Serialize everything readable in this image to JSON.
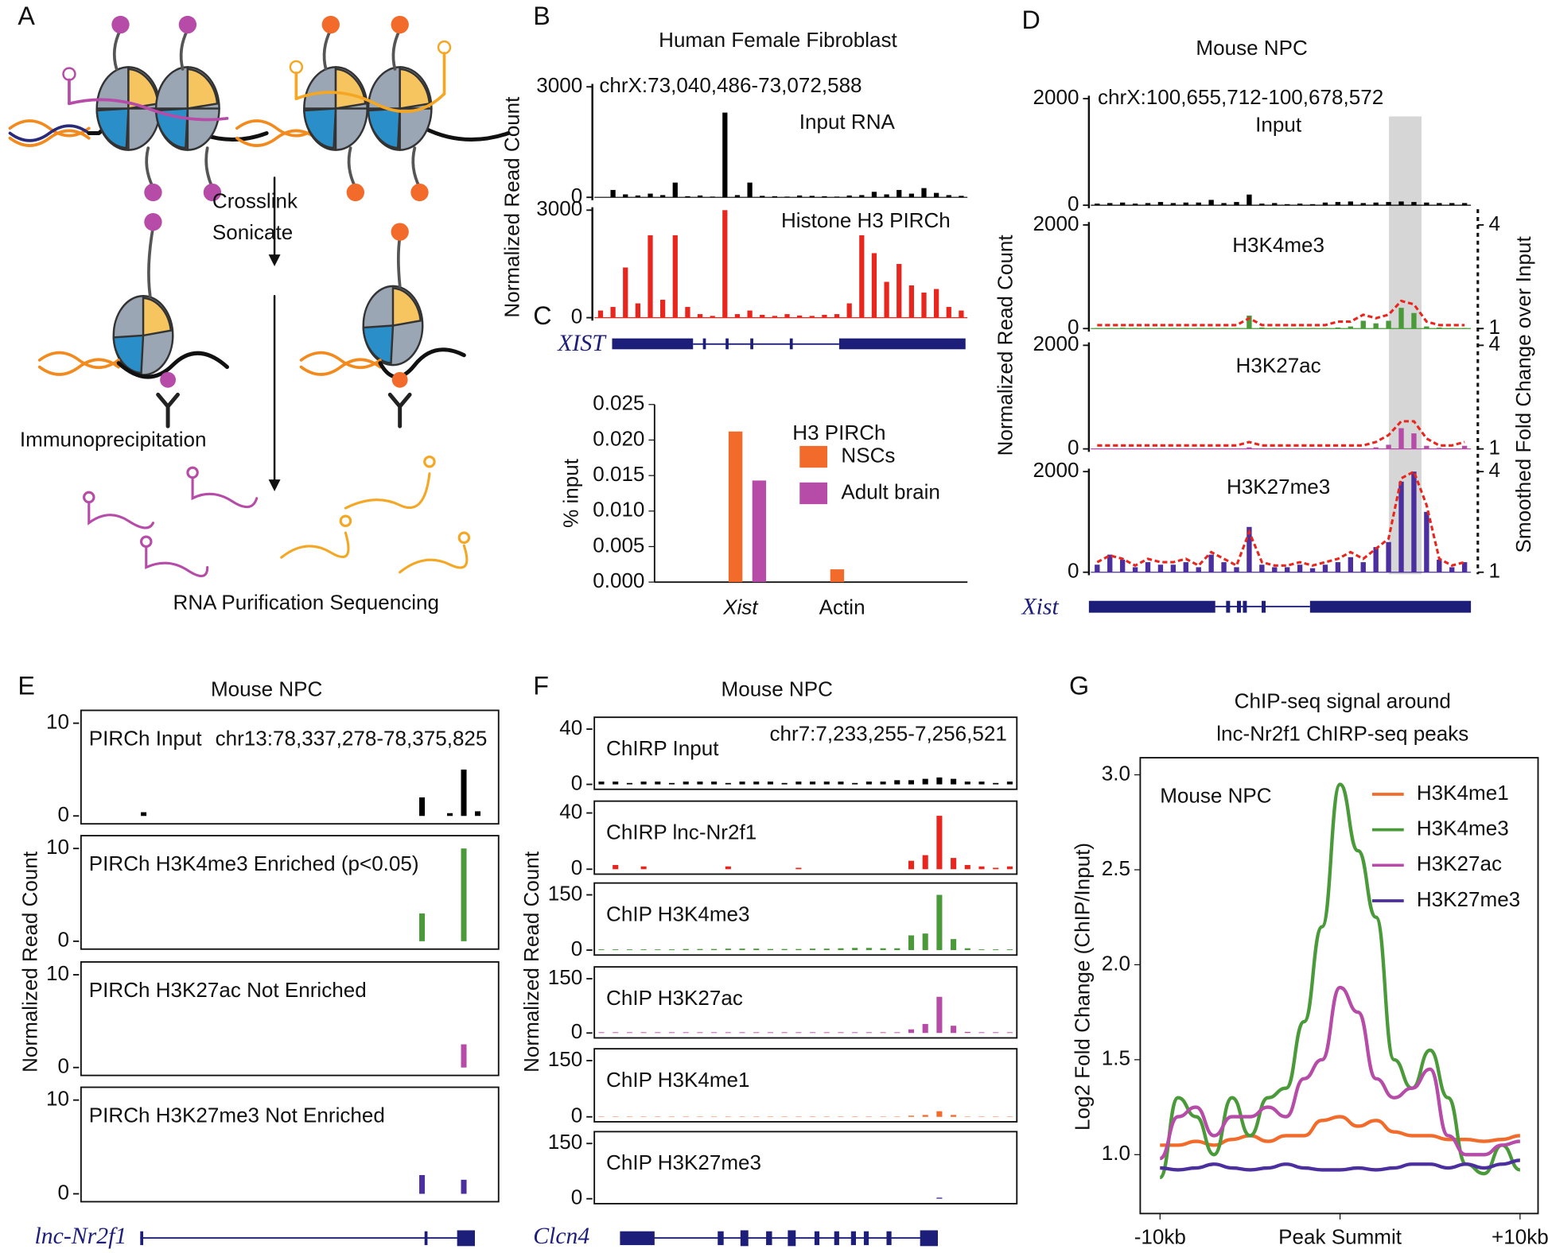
{
  "panel_labels": [
    "A",
    "B",
    "C",
    "D",
    "E",
    "F",
    "G"
  ],
  "panel_a": {
    "step1": [
      "Crosslink",
      "Sonicate"
    ],
    "step2": "Immunoprecipitation",
    "step3": "RNA Purification Sequencing"
  },
  "panel_b": {
    "title": "Human Female Fibroblast",
    "coords": "chrX:73,040,486-73,072,588",
    "y_label": "Normalized Read Count",
    "gene": "XIST",
    "tracks": [
      {
        "label": "Input RNA",
        "color": "#000000",
        "label_color": "#000000",
        "ylim": [
          0,
          3000
        ],
        "yticks": [
          0,
          3000
        ],
        "values": [
          0,
          200,
          80,
          50,
          100,
          60,
          400,
          30,
          50,
          20,
          2300,
          60,
          400,
          40,
          30,
          20,
          50,
          40,
          30,
          20,
          50,
          60,
          150,
          80,
          200,
          100,
          250,
          120,
          60,
          40
        ]
      },
      {
        "label": "Histone H3 PIRCh",
        "color": "#e8261e",
        "label_color": "#e8261e",
        "ylim": [
          0,
          3000
        ],
        "yticks": [
          0,
          3000
        ],
        "values": [
          200,
          300,
          1400,
          400,
          2300,
          500,
          2300,
          300,
          100,
          50,
          3000,
          100,
          200,
          80,
          50,
          100,
          60,
          50,
          80,
          100,
          400,
          2300,
          1800,
          1000,
          1500,
          900,
          700,
          800,
          300,
          200
        ]
      }
    ]
  },
  "panel_d": {
    "title": "Mouse NPC",
    "coords": "chrX:100,655,712-100,678,572",
    "y_label": "Normalized Read Count",
    "y2_label": "Smoothed Fold Change over Input",
    "gene": "Xist",
    "tracks": [
      {
        "label": "Input",
        "color": "#000000",
        "label_color": "#000000",
        "ylim": [
          0,
          2000
        ],
        "yticks": [
          0,
          2000
        ],
        "values": [
          30,
          40,
          50,
          30,
          40,
          60,
          40,
          50,
          50,
          100,
          40,
          60,
          200,
          30,
          40,
          20,
          30,
          20,
          50,
          60,
          70,
          40,
          50,
          60,
          70,
          60,
          50,
          40,
          40,
          40
        ]
      },
      {
        "label": "H3K4me3",
        "color": "#4a9a3a",
        "label_color": "#4a9a3a",
        "ylim": [
          0,
          2000
        ],
        "yticks": [
          0,
          2000
        ],
        "y2lim": [
          1,
          4
        ],
        "y2ticks": [
          1,
          4
        ],
        "values": [
          10,
          10,
          15,
          10,
          10,
          10,
          10,
          10,
          10,
          10,
          10,
          10,
          250,
          20,
          10,
          10,
          10,
          10,
          10,
          20,
          40,
          150,
          100,
          150,
          400,
          300,
          40,
          20,
          10,
          10
        ],
        "fold_change": [
          1.1,
          1.1,
          1.1,
          1.1,
          1.1,
          1.1,
          1.1,
          1.1,
          1.1,
          1.1,
          1.1,
          1.1,
          1.3,
          1.1,
          1.1,
          1.1,
          1.1,
          1.1,
          1.1,
          1.2,
          1.2,
          1.4,
          1.3,
          1.4,
          1.8,
          1.7,
          1.2,
          1.1,
          1.1,
          1.1
        ]
      },
      {
        "label": "H3K27ac",
        "color": "#b64ba8",
        "label_color": "#b64ba8",
        "ylim": [
          0,
          2000
        ],
        "yticks": [
          0,
          2000
        ],
        "y2lim": [
          1,
          4
        ],
        "y2ticks": [
          1,
          4
        ],
        "values": [
          10,
          10,
          10,
          10,
          10,
          10,
          10,
          10,
          10,
          10,
          10,
          10,
          30,
          10,
          10,
          10,
          10,
          10,
          10,
          10,
          10,
          10,
          30,
          80,
          400,
          300,
          60,
          20,
          10,
          60
        ],
        "fold_change": [
          1.1,
          1.1,
          1.1,
          1.1,
          1.1,
          1.1,
          1.1,
          1.1,
          1.1,
          1.1,
          1.1,
          1.1,
          1.2,
          1.1,
          1.1,
          1.1,
          1.1,
          1.1,
          1.1,
          1.1,
          1.1,
          1.1,
          1.2,
          1.4,
          1.8,
          1.8,
          1.3,
          1.1,
          1.1,
          1.2
        ]
      },
      {
        "label": "H3K27me3",
        "color": "#4b2f9e",
        "label_color": "#4b2f9e",
        "ylim": [
          0,
          2000
        ],
        "yticks": [
          0,
          2000
        ],
        "y2lim": [
          1,
          4
        ],
        "y2ticks": [
          1,
          4
        ],
        "values": [
          150,
          350,
          250,
          100,
          200,
          150,
          150,
          200,
          100,
          350,
          200,
          100,
          900,
          150,
          100,
          100,
          150,
          80,
          150,
          200,
          300,
          200,
          500,
          600,
          1800,
          2000,
          1200,
          250,
          100,
          200
        ],
        "fold_change": [
          1.3,
          1.5,
          1.4,
          1.2,
          1.4,
          1.3,
          1.3,
          1.4,
          1.2,
          1.6,
          1.4,
          1.2,
          2.2,
          1.3,
          1.2,
          1.2,
          1.3,
          1.2,
          1.3,
          1.4,
          1.6,
          1.4,
          1.7,
          2.0,
          3.8,
          4.0,
          3.0,
          1.4,
          1.2,
          1.3
        ]
      }
    ]
  },
  "panel_e": {
    "title": "Mouse NPC",
    "coords": "chr13:78,337,278-78,375,825",
    "y_label": "Normalized Read Count",
    "gene": "lnc-Nr2f1",
    "tracks": [
      {
        "label": "PIRCh Input",
        "color": "#000000",
        "label_color": "#000000",
        "ylim": [
          0,
          10
        ],
        "yticks": [
          0,
          10
        ],
        "values": [
          0,
          0,
          0,
          0,
          0.4,
          0,
          0,
          0,
          0,
          0,
          0,
          0,
          0,
          0,
          0,
          0,
          0,
          0,
          0,
          0,
          0,
          0,
          0,
          0,
          2,
          0,
          0.3,
          5,
          0.5,
          0
        ]
      },
      {
        "label": "PIRCh H3K4me3 Enriched (p<0.05)",
        "color": "#4a9a3a",
        "label_color": "#4a9a3a",
        "ylim": [
          0,
          10
        ],
        "yticks": [
          0,
          10
        ],
        "values": [
          0,
          0,
          0,
          0,
          0,
          0,
          0,
          0,
          0,
          0,
          0,
          0,
          0,
          0,
          0,
          0,
          0,
          0,
          0,
          0,
          0,
          0,
          0,
          0,
          3,
          0,
          0,
          10,
          0,
          0
        ]
      },
      {
        "label": "PIRCh H3K27ac Not Enriched",
        "color": "#b64ba8",
        "label_color": "#b64ba8",
        "ylim": [
          0,
          10
        ],
        "yticks": [
          0,
          10
        ],
        "values": [
          0,
          0,
          0,
          0,
          0,
          0,
          0,
          0,
          0,
          0,
          0,
          0,
          0,
          0,
          0,
          0,
          0,
          0,
          0,
          0,
          0,
          0,
          0,
          0,
          0,
          0,
          0,
          2.5,
          0,
          0
        ]
      },
      {
        "label": "PIRCh H3K27me3 Not Enriched",
        "color": "#4b2f9e",
        "label_color": "#4b2f9e",
        "ylim": [
          0,
          10
        ],
        "yticks": [
          0,
          10
        ],
        "values": [
          0,
          0,
          0,
          0,
          0,
          0,
          0,
          0,
          0,
          0,
          0,
          0,
          0,
          0,
          0,
          0,
          0,
          0,
          0,
          0,
          0,
          0,
          0,
          0,
          2,
          0,
          0,
          1.5,
          0,
          0
        ]
      }
    ]
  },
  "panel_f": {
    "title": "Mouse NPC",
    "coords": "chr7:7,233,255-7,256,521",
    "y_label": "Normalized Read Count",
    "gene": "Clcn4",
    "tracks": [
      {
        "label": "ChIRP Input",
        "color": "#000000",
        "label_color": "#000000",
        "ylim": [
          0,
          40
        ],
        "yticks": [
          0,
          40
        ],
        "values": [
          2,
          2,
          1,
          2,
          2,
          1,
          2,
          2,
          2,
          1,
          2,
          2,
          2,
          1,
          2,
          2,
          2,
          2,
          1,
          2,
          2,
          3,
          3,
          4,
          5,
          4,
          2,
          2,
          1,
          2
        ]
      },
      {
        "label": "ChIRP lnc-Nr2f1",
        "color": "#e8261e",
        "label_color": "#000000",
        "ylim": [
          0,
          40
        ],
        "yticks": [
          0,
          40
        ],
        "values": [
          0,
          3,
          0,
          2,
          0,
          0,
          0,
          0,
          0,
          2,
          0,
          0,
          0,
          0,
          1,
          0,
          0,
          0,
          0,
          0,
          0,
          0,
          6,
          10,
          38,
          8,
          3,
          2,
          1,
          2
        ]
      },
      {
        "label": "ChIP H3K4me3",
        "color": "#4a9a3a",
        "label_color": "#000000",
        "ylim": [
          0,
          150
        ],
        "yticks": [
          0,
          150
        ],
        "values": [
          2,
          2,
          2,
          2,
          2,
          2,
          3,
          3,
          3,
          4,
          4,
          4,
          3,
          3,
          3,
          4,
          4,
          5,
          6,
          6,
          5,
          5,
          40,
          45,
          150,
          30,
          5,
          2,
          2,
          2
        ]
      },
      {
        "label": "ChIP H3K27ac",
        "color": "#b64ba8",
        "label_color": "#000000",
        "ylim": [
          0,
          150
        ],
        "yticks": [
          0,
          150
        ],
        "values": [
          2,
          2,
          2,
          2,
          2,
          2,
          2,
          2,
          2,
          2,
          2,
          2,
          2,
          2,
          2,
          2,
          2,
          2,
          2,
          2,
          2,
          2,
          10,
          25,
          100,
          20,
          3,
          2,
          2,
          2
        ]
      },
      {
        "label": "ChIP H3K4me1",
        "color": "#f26b2a",
        "label_color": "#000000",
        "ylim": [
          0,
          150
        ],
        "yticks": [
          0,
          150
        ],
        "values": [
          1,
          1,
          1,
          1,
          1,
          1,
          1,
          1,
          1,
          1,
          1,
          1,
          1,
          1,
          1,
          1,
          1,
          1,
          1,
          1,
          1,
          1,
          3,
          5,
          15,
          5,
          1,
          1,
          1,
          1
        ]
      },
      {
        "label": "ChIP H3K27me3",
        "color": "#4b2f9e",
        "label_color": "#000000",
        "ylim": [
          0,
          150
        ],
        "yticks": [
          0,
          150
        ],
        "values": [
          0,
          0,
          0,
          0,
          0,
          0,
          0,
          0,
          0,
          0,
          0,
          0,
          0,
          0,
          0,
          0,
          0,
          0,
          0,
          0,
          0,
          0,
          0,
          0,
          3,
          0,
          0,
          0,
          0,
          0
        ]
      }
    ]
  },
  "chart_data": [
    {
      "type": "bar",
      "title": "H3 PIRCh",
      "y_label": "% input",
      "categories": [
        "Xist",
        "Actin"
      ],
      "series": [
        {
          "name": "NSCs",
          "color": "#f26b2a",
          "values": [
            0.0212,
            0.0018
          ]
        },
        {
          "name": "Adult brain",
          "color": "#b64ba8",
          "values": [
            0.0143,
            0
          ]
        }
      ],
      "ylim": [
        0,
        0.025
      ],
      "yticks": [
        {
          "value": 0,
          "label": "0.000"
        },
        {
          "value": 0.005,
          "label": "0.005"
        },
        {
          "value": 0.01,
          "label": "0.010"
        },
        {
          "value": 0.015,
          "label": "0.015"
        },
        {
          "value": 0.02,
          "label": "0.020"
        },
        {
          "value": 0.025,
          "label": "0.025"
        }
      ]
    },
    {
      "type": "line",
      "title": [
        "ChIP-seq signal around",
        "lnc-Nr2f1 ChIRP-seq peaks"
      ],
      "annotation": "Mouse NPC",
      "y_label": "Log2 Fold Change (ChIP/Input)",
      "x": [
        -10,
        -9,
        -8,
        -7,
        -6,
        -5,
        -4,
        -3,
        -2,
        -1,
        0,
        1,
        2,
        3,
        4,
        5,
        6,
        7,
        8,
        9,
        10
      ],
      "xlim": [
        -11.1,
        11
      ],
      "xticks": [
        {
          "value": -10,
          "label": "-10kb"
        },
        {
          "value": 0,
          "label": "Peak Summit"
        },
        {
          "value": 10,
          "label": "+10kb"
        }
      ],
      "ylim": [
        0.69,
        3.09
      ],
      "yticks": [
        {
          "value": 1,
          "label": "1.0"
        },
        {
          "value": 1.5,
          "label": "1.5"
        },
        {
          "value": 2,
          "label": "2.0"
        },
        {
          "value": 2.5,
          "label": "2.5"
        },
        {
          "value": 3,
          "label": "3.0"
        }
      ],
      "series": [
        {
          "name": "H3K4me1",
          "color": "#f26b2a",
          "values": [
            1.05,
            1.05,
            1.07,
            1.05,
            1.08,
            1.1,
            1.07,
            1.1,
            1.1,
            1.18,
            1.2,
            1.15,
            1.18,
            1.12,
            1.1,
            1.1,
            1.08,
            1.08,
            1.07,
            1.08,
            1.1
          ]
        },
        {
          "name": "H3K4me3",
          "color": "#4a9a3a",
          "values": [
            0.88,
            1.3,
            1.2,
            1.0,
            1.3,
            1.1,
            1.3,
            1.35,
            1.7,
            2.2,
            2.95,
            2.6,
            2.25,
            1.5,
            1.35,
            1.55,
            1.3,
            0.95,
            0.9,
            1.05,
            0.92
          ]
        },
        {
          "name": "H3K27ac",
          "color": "#b64ba8",
          "values": [
            0.98,
            1.2,
            1.25,
            1.1,
            1.2,
            1.2,
            1.25,
            1.2,
            1.4,
            1.5,
            1.88,
            1.75,
            1.4,
            1.3,
            1.35,
            1.45,
            1.1,
            1.0,
            1.0,
            1.05,
            1.07
          ]
        },
        {
          "name": "H3K27me3",
          "color": "#4b2f9e",
          "values": [
            0.93,
            0.92,
            0.93,
            0.95,
            0.93,
            0.92,
            0.93,
            0.95,
            0.93,
            0.92,
            0.92,
            0.93,
            0.92,
            0.93,
            0.95,
            0.95,
            0.93,
            0.95,
            0.93,
            0.95,
            0.97
          ]
        }
      ]
    }
  ]
}
